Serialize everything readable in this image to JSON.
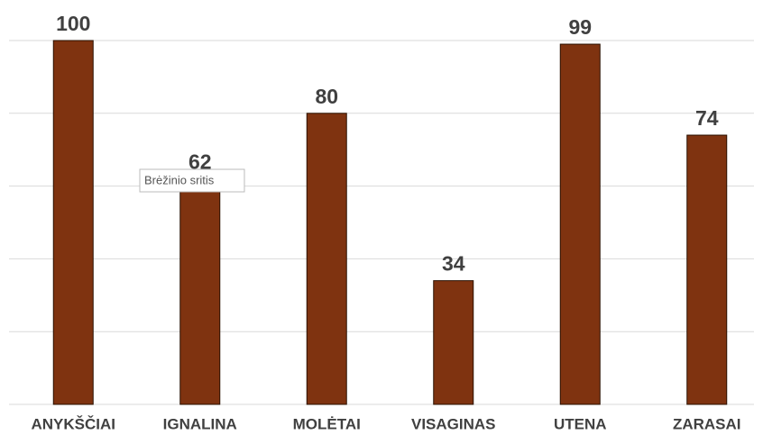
{
  "chart_data": {
    "type": "bar",
    "categories": [
      "ANYKŠČIAI",
      "IGNALINA",
      "MOLĖTAI",
      "VISAGINAS",
      "UTENA",
      "ZARASAI"
    ],
    "values": [
      100,
      62,
      80,
      34,
      99,
      74
    ],
    "color": "#7f3310",
    "ylim": [
      0,
      100
    ],
    "yticks": [
      0,
      20,
      40,
      60,
      80,
      100
    ],
    "grid": true,
    "tooltip": "Brėžinio sritis"
  }
}
